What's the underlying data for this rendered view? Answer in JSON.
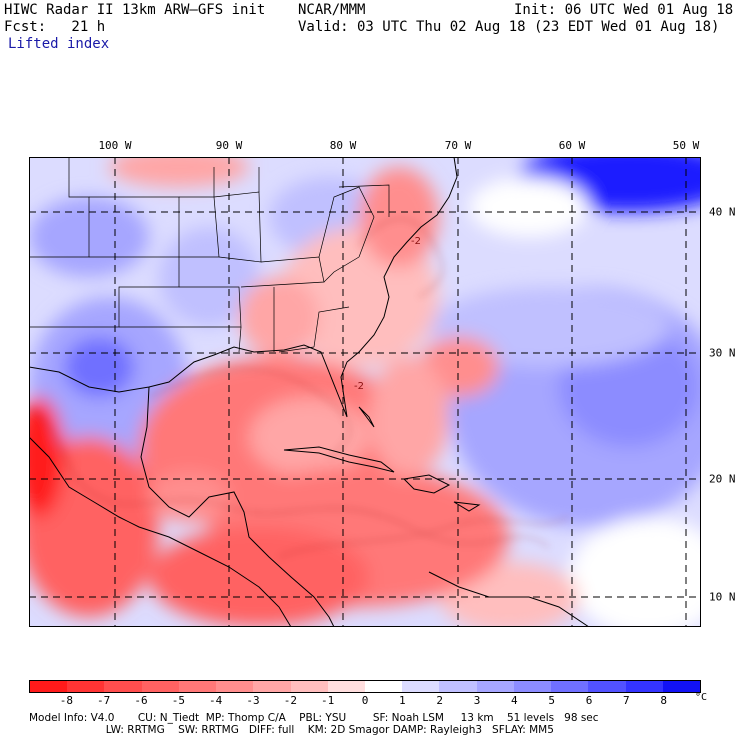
{
  "header": {
    "title": "HIWC Radar II 13km ARW–GFS init",
    "org": "NCAR/MMM",
    "init": "Init: 06 UTC Wed 01 Aug 18",
    "fcst": "Fcst:   21 h",
    "valid": "Valid: 03 UTC Thu 02 Aug 18 (23 EDT Wed 01 Aug 18)",
    "field": "Lifted index"
  },
  "map": {
    "lon_labels": [
      "100 W",
      "90 W",
      "80 W",
      "70 W",
      "60 W",
      "50 W"
    ],
    "lat_labels": [
      "40 N",
      "30 N",
      "20 N",
      "10 N"
    ],
    "contour_labels": [
      "-2",
      "-2"
    ]
  },
  "colorbar": {
    "labels": [
      "-8",
      "-7",
      "-6",
      "-5",
      "-4",
      "-3",
      "-2",
      "-1",
      "0",
      "1",
      "2",
      "3",
      "4",
      "5",
      "6",
      "7",
      "8"
    ],
    "unit": "°C",
    "colors": [
      "#ff1a1a",
      "#ff3434",
      "#ff4e4e",
      "#ff6262",
      "#ff7878",
      "#ff8e8e",
      "#ffa6a6",
      "#ffbebe",
      "#ffdede",
      "#ffffff",
      "#dcdcff",
      "#c0c0ff",
      "#a6a6ff",
      "#8c8cff",
      "#7070ff",
      "#5252ff",
      "#3434ff",
      "#1212f6"
    ]
  },
  "model_info": {
    "line1": "Model Info: V4.0       CU: N_Tiedt  MP: Thomp C/A    PBL: YSU        SF: Noah LSM     13 km    51 levels   98 sec",
    "line2": "                       LW: RRTMG    SW: RRTMG   DIFF: full    KM: 2D Smagor DAMP: Rayleigh3   SFLAY: MM5"
  }
}
